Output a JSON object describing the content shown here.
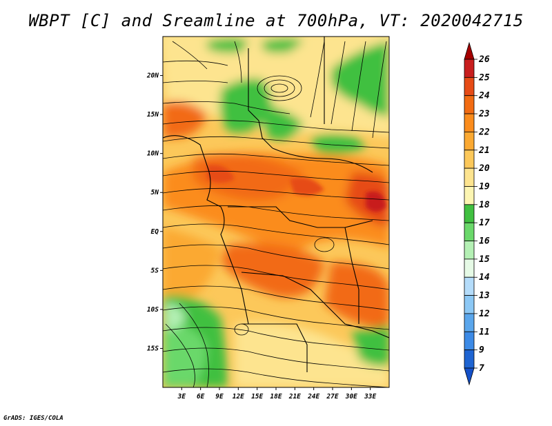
{
  "title": "WBPT [C] and Sreamline at 700hPa, VT: 2020042715",
  "footer": "GrADS: IGES/COLA",
  "map": {
    "lon_range": [
      0,
      36
    ],
    "lat_range": [
      -20,
      25
    ],
    "lat_ticks": [
      "20N",
      "15N",
      "10N",
      "5N",
      "EQ",
      "5S",
      "10S",
      "15S"
    ],
    "lon_ticks": [
      "3E",
      "6E",
      "9E",
      "12E",
      "15E",
      "18E",
      "21E",
      "24E",
      "27E",
      "30E",
      "33E"
    ]
  },
  "colorbar": {
    "levels": [
      "26",
      "25",
      "24",
      "23",
      "22",
      "21",
      "20",
      "19",
      "18",
      "17",
      "16",
      "15",
      "14",
      "13",
      "12",
      "11",
      "9",
      "7"
    ],
    "colors": [
      "#a50000",
      "#c81e1e",
      "#e64b16",
      "#f26b12",
      "#fb8c1c",
      "#fba932",
      "#fcc85a",
      "#fde48f",
      "#fcf5b2",
      "#40c040",
      "#6ad86a",
      "#b4f0b4",
      "#e6fae6",
      "#b4dcfa",
      "#8cc8f5",
      "#5aa6ec",
      "#3c8ae6",
      "#1e64d2",
      "#1450c8"
    ]
  }
}
